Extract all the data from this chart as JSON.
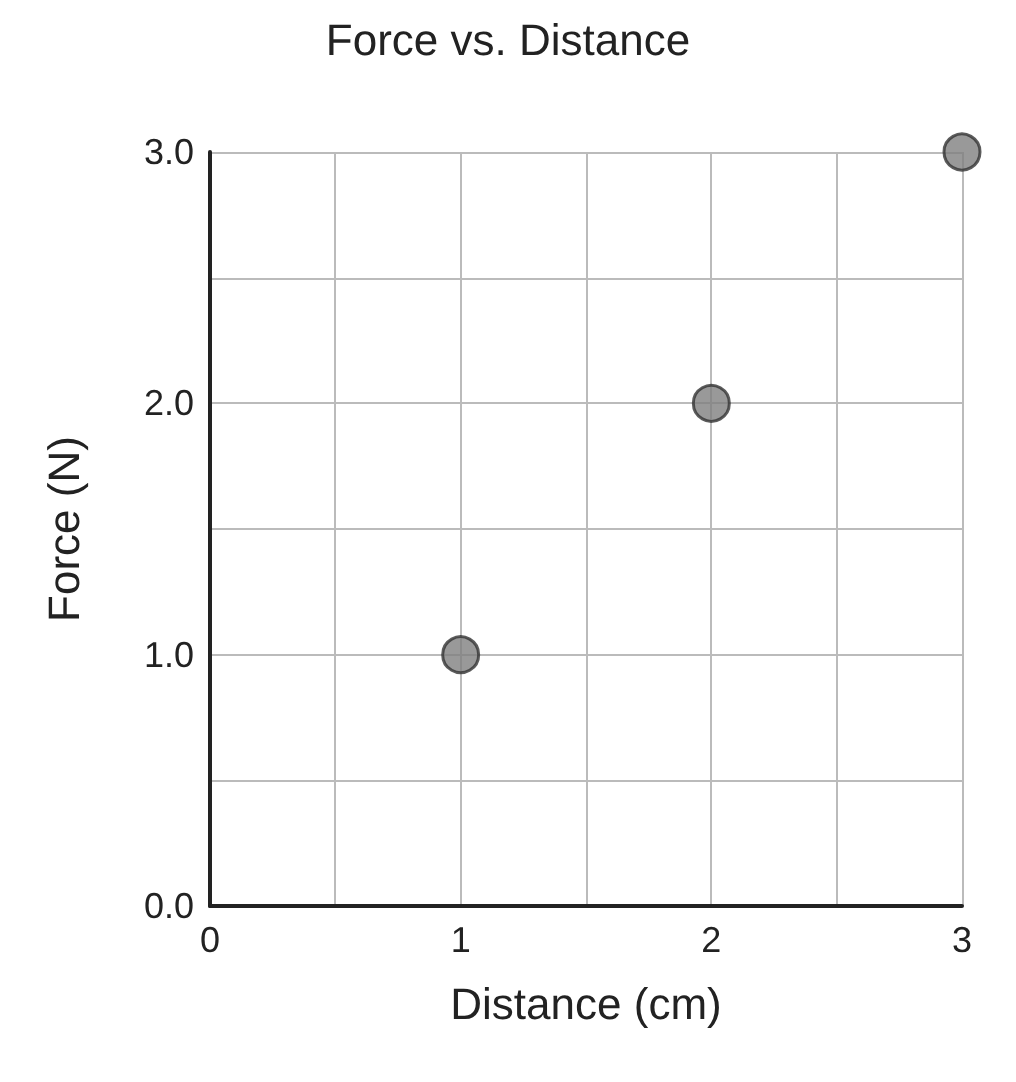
{
  "chart_data": {
    "type": "scatter",
    "title": "Force vs. Distance",
    "xlabel": "Distance (cm)",
    "ylabel": "Force (N)",
    "x": [
      1,
      2,
      3
    ],
    "series": [
      {
        "color": "#808080",
        "values": [
          1.0,
          2.0,
          3.0
        ]
      }
    ],
    "xlim": [
      0,
      3
    ],
    "xticks": [
      0,
      {
        "value": 0.5,
        "label": null
      },
      1,
      {
        "value": 1.5,
        "label": null
      },
      2,
      {
        "value": 2.5,
        "label": null
      },
      3
    ],
    "ylim": [
      0,
      3
    ],
    "yticks": [
      {
        "value": 0,
        "label": "0.0"
      },
      {
        "value": 0.5,
        "label": null
      },
      {
        "value": 1,
        "label": "1.0"
      },
      {
        "value": 1.5,
        "label": null
      },
      {
        "value": 2,
        "label": "2.0"
      },
      {
        "value": 2.5,
        "label": null
      },
      {
        "value": 3,
        "label": "3.0"
      }
    ],
    "grid": true,
    "marker": "circle"
  }
}
